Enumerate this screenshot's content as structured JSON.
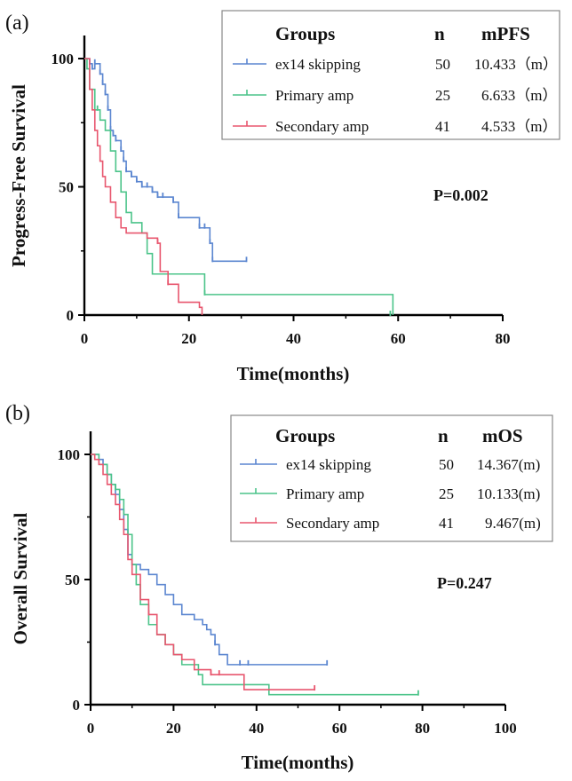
{
  "chart_data": [
    {
      "type": "line",
      "panel_label": "(a)",
      "xlabel": "Time(months)",
      "ylabel": "Progress-Free Survival",
      "xlim": [
        0,
        80
      ],
      "ylim": [
        0,
        100
      ],
      "xticks": [
        0,
        20,
        40,
        60,
        80
      ],
      "yticks": [
        0,
        50,
        100
      ],
      "grid": false,
      "legend": {
        "placement": "top-right",
        "headers": [
          "Groups",
          "n",
          "mPFS"
        ],
        "rows": [
          {
            "group": "ex14 skipping",
            "n": "50",
            "stat": "10.433（m）"
          },
          {
            "group": "Primary amp",
            "n": "25",
            "stat": "6.633（m）"
          },
          {
            "group": "Secondary amp",
            "n": "41",
            "stat": "4.533（m）"
          }
        ]
      },
      "annotation": "P=0.002",
      "series": [
        {
          "name": "ex14 skipping",
          "color": "#5b86d0",
          "x": [
            0,
            1,
            1.5,
            2,
            3,
            3.5,
            4,
            4.5,
            5,
            5.5,
            6,
            7,
            7.5,
            8,
            9,
            10,
            11,
            12,
            13,
            14,
            15,
            17,
            18,
            22,
            23,
            24,
            24.5,
            31
          ],
          "y": [
            100,
            98,
            96,
            98,
            94,
            90,
            86,
            80,
            72,
            70,
            68,
            64,
            60,
            56,
            54,
            52,
            50,
            50,
            48,
            46,
            46,
            44,
            38,
            34,
            34,
            28,
            21,
            21
          ]
        },
        {
          "name": "Primary amp",
          "color": "#4cc48a",
          "x": [
            0,
            0.5,
            1,
            2,
            3,
            4,
            5,
            6,
            7,
            8,
            9,
            11,
            12,
            13,
            23,
            58.5,
            59
          ],
          "y": [
            100,
            96,
            88,
            80,
            76,
            72,
            64,
            56,
            48,
            40,
            36,
            32,
            24,
            16,
            8,
            8,
            0
          ],
          "censor": [
            {
              "x": 2.5,
              "y": 80
            },
            {
              "x": 23,
              "y": 8
            },
            {
              "x": 58.5,
              "y": 0
            }
          ]
        },
        {
          "name": "Secondary amp",
          "color": "#e8566e",
          "x": [
            0,
            1,
            1.5,
            2,
            2.5,
            3,
            3.5,
            4,
            5,
            6,
            7,
            8,
            10,
            12,
            14,
            14.5,
            16,
            18,
            22,
            22.5
          ],
          "y": [
            100,
            88,
            80,
            72,
            66,
            60,
            54,
            50,
            44,
            38,
            34,
            32,
            32,
            30,
            28,
            17,
            12,
            5,
            3,
            0
          ],
          "censor": [
            {
              "x": 14,
              "y": 28
            },
            {
              "x": 16,
              "y": 12
            }
          ]
        }
      ]
    },
    {
      "type": "line",
      "panel_label": "(b)",
      "xlabel": "Time(months)",
      "ylabel": "Overall Survival",
      "xlim": [
        0,
        100
      ],
      "ylim": [
        0,
        100
      ],
      "xticks": [
        0,
        20,
        40,
        60,
        80,
        100
      ],
      "yticks": [
        0,
        50,
        100
      ],
      "grid": false,
      "legend": {
        "placement": "top-right",
        "headers": [
          "Groups",
          "n",
          "mOS"
        ],
        "rows": [
          {
            "group": "ex14 skipping",
            "n": "50",
            "stat": "14.367(m)"
          },
          {
            "group": "Primary amp",
            "n": "25",
            "stat": "10.133(m)"
          },
          {
            "group": "Secondary amp",
            "n": "41",
            "stat": "9.467(m)"
          }
        ]
      },
      "annotation": "P=0.247",
      "series": [
        {
          "name": "ex14 skipping",
          "color": "#5b86d0",
          "x": [
            0,
            2,
            3,
            4,
            5,
            6,
            7,
            8,
            9,
            10,
            12,
            14,
            16,
            18,
            20,
            22,
            25,
            27,
            28,
            29,
            30,
            31,
            33,
            35,
            38,
            57
          ],
          "y": [
            100,
            98,
            96,
            92,
            88,
            84,
            78,
            70,
            60,
            56,
            54,
            52,
            48,
            44,
            40,
            36,
            34,
            32,
            30,
            28,
            24,
            20,
            16,
            16,
            16,
            16
          ],
          "censor": [
            {
              "x": 30,
              "y": 24
            },
            {
              "x": 36,
              "y": 16
            },
            {
              "x": 38,
              "y": 16
            },
            {
              "x": 57,
              "y": 16
            }
          ]
        },
        {
          "name": "Primary amp",
          "color": "#4cc48a",
          "x": [
            0,
            2,
            4,
            5,
            6,
            7,
            8,
            9,
            10,
            11,
            12,
            14,
            16,
            18,
            20,
            22,
            26,
            27,
            42,
            43,
            79
          ],
          "y": [
            100,
            96,
            92,
            88,
            86,
            82,
            76,
            68,
            56,
            48,
            40,
            32,
            28,
            24,
            20,
            16,
            12,
            8,
            8,
            4,
            4
          ],
          "censor": [
            {
              "x": 6,
              "y": 86
            },
            {
              "x": 79,
              "y": 4
            }
          ]
        },
        {
          "name": "Secondary amp",
          "color": "#e8566e",
          "x": [
            0,
            1,
            2,
            3,
            4,
            5,
            6,
            7,
            8,
            9,
            10,
            12,
            14,
            16,
            18,
            20,
            22,
            25,
            29,
            37,
            38,
            54
          ],
          "y": [
            100,
            98,
            96,
            92,
            88,
            84,
            80,
            74,
            68,
            58,
            52,
            42,
            36,
            28,
            24,
            20,
            18,
            14,
            12,
            6,
            6,
            6
          ],
          "censor": [
            {
              "x": 14,
              "y": 36
            },
            {
              "x": 29,
              "y": 12
            },
            {
              "x": 31,
              "y": 12
            },
            {
              "x": 54,
              "y": 6
            }
          ]
        }
      ]
    }
  ]
}
